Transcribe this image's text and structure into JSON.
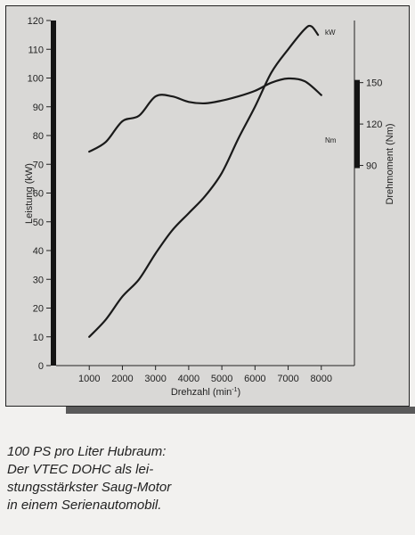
{
  "chart_data": {
    "type": "line",
    "x_label_text": "Drehzahl (min",
    "x_label_sup": "-1",
    "x_label_close": ")",
    "y_left_label": "Leistung (kW)",
    "y_right_label": "Drehmoment (Nm)",
    "x_ticks": [
      1000,
      2000,
      3000,
      4000,
      5000,
      6000,
      7000,
      8000
    ],
    "x_tick_labels": [
      "1000",
      "2000",
      "3000",
      "4000",
      "5000",
      "6000",
      "7000",
      "8000"
    ],
    "y_left_ticks": [
      0,
      10,
      20,
      30,
      40,
      50,
      60,
      70,
      80,
      90,
      100,
      110,
      120
    ],
    "y_left_tick_labels": [
      "0",
      "10",
      "20",
      "30",
      "40",
      "50",
      "60",
      "70",
      "80",
      "90",
      "100",
      "110",
      "120"
    ],
    "y_right_ticks": [
      90,
      120,
      150
    ],
    "y_right_tick_labels": [
      "90",
      "120",
      "150"
    ],
    "xlim": [
      0,
      9000
    ],
    "ylim_left": [
      0,
      120
    ],
    "ylim_right": [
      -55,
      195
    ],
    "series": [
      {
        "name": "kW",
        "axis": "left",
        "x": [
          1000,
          1500,
          2000,
          2500,
          3000,
          3500,
          4000,
          4500,
          5000,
          5500,
          6000,
          6500,
          7000,
          7500,
          7700,
          7900
        ],
        "y": [
          10,
          16,
          24,
          30,
          39,
          47,
          53,
          59,
          67,
          79,
          90,
          102,
          110,
          117,
          118,
          115
        ]
      },
      {
        "name": "Nm",
        "axis": "right",
        "x": [
          1000,
          1500,
          2000,
          2500,
          3000,
          3500,
          4000,
          4500,
          5000,
          5500,
          6000,
          6500,
          7000,
          7500,
          8000
        ],
        "y": [
          100,
          107,
          122,
          126,
          140,
          140,
          136,
          135,
          137,
          140,
          144,
          150,
          153,
          151,
          141
        ]
      }
    ]
  },
  "caption": [
    "100 PS pro Liter Hubraum:",
    "Der VTEC DOHC als lei-",
    "stungsstärkster Saug-Motor",
    "in einem Serienautomobil."
  ]
}
